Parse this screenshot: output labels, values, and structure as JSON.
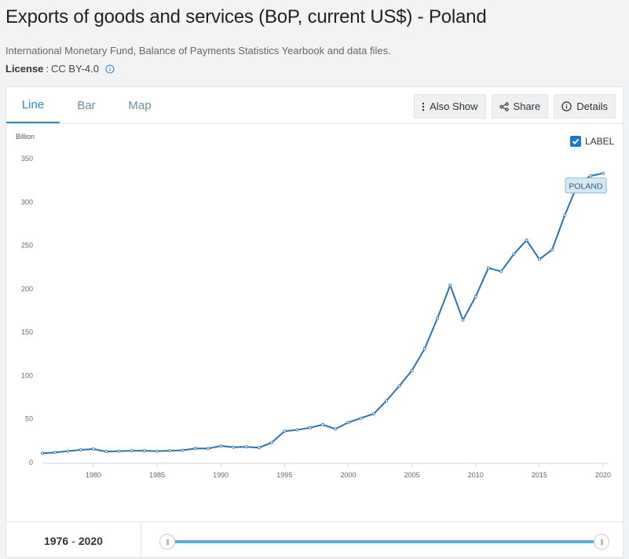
{
  "header": {
    "title": "Exports of goods and services (BoP, current US$) - Poland",
    "source": "International Monetary Fund, Balance of Payments Statistics Yearbook and data files.",
    "license_label": "License",
    "license_sep": ":",
    "license_value": "CC BY-4.0"
  },
  "tabs": [
    {
      "label": "Line"
    },
    {
      "label": "Bar"
    },
    {
      "label": "Map"
    }
  ],
  "toolbar": {
    "also_show": "Also Show",
    "share": "Share",
    "details": "Details"
  },
  "label_toggle": "LABEL",
  "range": {
    "start": "1976",
    "sep": "-",
    "end": "2020"
  },
  "colors": {
    "line": "#2b73b0",
    "accent": "#2c87c9"
  },
  "chart_data": {
    "type": "line",
    "ylabel": "Billion",
    "series_label": "POLAND",
    "ylim": [
      0,
      350
    ],
    "xlim": [
      1976,
      2020
    ],
    "yticks": [
      0,
      50,
      100,
      150,
      200,
      250,
      300,
      350
    ],
    "xticks": [
      1980,
      1985,
      1990,
      1995,
      2000,
      2005,
      2010,
      2015,
      2020
    ],
    "series": [
      {
        "name": "Poland",
        "x": [
          1976,
          1977,
          1978,
          1979,
          1980,
          1981,
          1982,
          1983,
          1984,
          1985,
          1986,
          1987,
          1988,
          1989,
          1990,
          1991,
          1992,
          1993,
          1994,
          1995,
          1996,
          1997,
          1998,
          1999,
          2000,
          2001,
          2002,
          2003,
          2004,
          2005,
          2006,
          2007,
          2008,
          2009,
          2010,
          2011,
          2012,
          2013,
          2014,
          2015,
          2016,
          2017,
          2018,
          2019,
          2020
        ],
        "values": [
          10.5,
          11.5,
          13.0,
          14.5,
          15.5,
          12.5,
          13.0,
          13.5,
          13.5,
          13.0,
          13.5,
          14.0,
          16.0,
          16.0,
          19.0,
          17.5,
          18.0,
          17.0,
          23.0,
          36.0,
          37.5,
          40.0,
          43.5,
          38.5,
          46.0,
          51.0,
          56.0,
          71.0,
          88.0,
          106.0,
          131.0,
          166.0,
          204.0,
          164.0,
          191.0,
          224.0,
          220.0,
          240.0,
          256.0,
          234.0,
          245.0,
          285.0,
          320.0,
          330.0,
          333.0
        ]
      }
    ]
  }
}
